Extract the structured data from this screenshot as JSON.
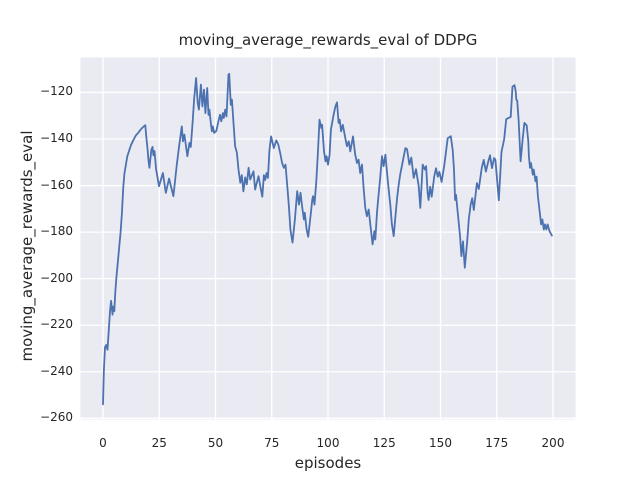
{
  "figure": {
    "background_color": "#ffffff",
    "text_color": "#262626"
  },
  "chart_data": {
    "type": "line",
    "title": "moving_average_rewards_eval of DDPG",
    "xlabel": "episodes",
    "ylabel": "moving_average_rewards_eval",
    "xlim": [
      -10,
      210
    ],
    "ylim": [
      -260.5,
      -105
    ],
    "grid": true,
    "legend_position": "none",
    "xticks": [
      0,
      25,
      50,
      75,
      100,
      125,
      150,
      175,
      200
    ],
    "xtick_labels": [
      "0",
      "25",
      "50",
      "75",
      "100",
      "125",
      "150",
      "175",
      "200"
    ],
    "yticks": [
      -120,
      -140,
      -160,
      -180,
      -200,
      -220,
      -240,
      -260
    ],
    "ytick_labels": [
      "−120",
      "−140",
      "−160",
      "−180",
      "−200",
      "−220",
      "−240",
      "−260"
    ],
    "style": {
      "axes_background": "#eaeaf2",
      "grid_color": "#ffffff",
      "line_color": "#4c72b0",
      "text_color": "#262626"
    },
    "series": [
      {
        "name": "moving_average_rewards_eval",
        "points": [
          [
            0,
            -254
          ],
          [
            0.4,
            -239
          ],
          [
            0.9,
            -229.5
          ],
          [
            1.4,
            -228.5
          ],
          [
            2,
            -230.5
          ],
          [
            2.6,
            -222
          ],
          [
            3.1,
            -214
          ],
          [
            3.6,
            -209.5
          ],
          [
            4.2,
            -215.5
          ],
          [
            4.6,
            -212
          ],
          [
            5,
            -214
          ],
          [
            5.5,
            -205
          ],
          [
            6,
            -199
          ],
          [
            6.6,
            -193
          ],
          [
            7.2,
            -186.5
          ],
          [
            7.8,
            -180
          ],
          [
            8.4,
            -172
          ],
          [
            9,
            -160.5
          ],
          [
            9.5,
            -155
          ],
          [
            10.2,
            -151
          ],
          [
            10.8,
            -147.5
          ],
          [
            11.5,
            -145.3
          ],
          [
            12.5,
            -142.5
          ],
          [
            13.6,
            -140.3
          ],
          [
            14.6,
            -138.5
          ],
          [
            15.7,
            -137.3
          ],
          [
            16.7,
            -136
          ],
          [
            17.7,
            -135
          ],
          [
            18.8,
            -134.1
          ],
          [
            19.3,
            -139.6
          ],
          [
            19.8,
            -144.6
          ],
          [
            20.2,
            -148.9
          ],
          [
            20.6,
            -152.4
          ],
          [
            21.5,
            -144.6
          ],
          [
            22,
            -143.4
          ],
          [
            22.4,
            -147
          ],
          [
            22.9,
            -145.2
          ],
          [
            23.6,
            -153
          ],
          [
            24.9,
            -160.3
          ],
          [
            26.6,
            -154.6
          ],
          [
            27.9,
            -163.1
          ],
          [
            29.4,
            -157
          ],
          [
            31.3,
            -164.6
          ],
          [
            32.8,
            -151
          ],
          [
            33.9,
            -142.5
          ],
          [
            35,
            -134.6
          ],
          [
            35.5,
            -141
          ],
          [
            36.2,
            -138.1
          ],
          [
            36.9,
            -143.1
          ],
          [
            37.5,
            -147.4
          ],
          [
            38.4,
            -141.7
          ],
          [
            39,
            -143.4
          ],
          [
            39.9,
            -131.7
          ],
          [
            40.5,
            -123.1
          ],
          [
            41.4,
            -113.8
          ],
          [
            42.1,
            -124.6
          ],
          [
            42.6,
            -127.4
          ],
          [
            43.5,
            -116.7
          ],
          [
            44.2,
            -126
          ],
          [
            44.9,
            -118.8
          ],
          [
            45.5,
            -128.9
          ],
          [
            46.3,
            -118.1
          ],
          [
            46.9,
            -129.6
          ],
          [
            47.3,
            -127.4
          ],
          [
            47.9,
            -133.1
          ],
          [
            48.4,
            -136.7
          ],
          [
            48.8,
            -134.6
          ],
          [
            49.4,
            -137.4
          ],
          [
            50.4,
            -136.5
          ],
          [
            51.3,
            -132.4
          ],
          [
            52,
            -129.6
          ],
          [
            52.6,
            -132.4
          ],
          [
            53.3,
            -128.9
          ],
          [
            53.7,
            -131
          ],
          [
            54.3,
            -127.4
          ],
          [
            54.9,
            -130.3
          ],
          [
            55.8,
            -112.4
          ],
          [
            56.1,
            -112
          ],
          [
            56.8,
            -125.3
          ],
          [
            57.3,
            -123.1
          ],
          [
            58,
            -133.1
          ],
          [
            58.7,
            -143.1
          ],
          [
            59.5,
            -146
          ],
          [
            60.2,
            -153.1
          ],
          [
            61,
            -158.8
          ],
          [
            61.7,
            -155.5
          ],
          [
            62.4,
            -162.5
          ],
          [
            63.2,
            -156.5
          ],
          [
            63.9,
            -159.5
          ],
          [
            64.7,
            -152.4
          ],
          [
            65.4,
            -157.4
          ],
          [
            66.9,
            -153.9
          ],
          [
            67.6,
            -161.7
          ],
          [
            69.1,
            -156
          ],
          [
            69.9,
            -160.3
          ],
          [
            70.8,
            -164.8
          ],
          [
            71.5,
            -155.5
          ],
          [
            72.1,
            -157.6
          ],
          [
            72.7,
            -154.6
          ],
          [
            73.3,
            -156.7
          ],
          [
            74,
            -144.6
          ],
          [
            74.7,
            -138.9
          ],
          [
            75.9,
            -143.9
          ],
          [
            77,
            -140.6
          ],
          [
            77.9,
            -142.4
          ],
          [
            78.9,
            -146.7
          ],
          [
            79.6,
            -150.3
          ],
          [
            80.4,
            -152.4
          ],
          [
            81.1,
            -151
          ],
          [
            81.9,
            -160.3
          ],
          [
            82.6,
            -168.9
          ],
          [
            83.3,
            -178.9
          ],
          [
            84.2,
            -184.5
          ],
          [
            85.3,
            -174.6
          ],
          [
            86.3,
            -162.4
          ],
          [
            87.1,
            -168.2
          ],
          [
            87.8,
            -163.1
          ],
          [
            88.5,
            -168.9
          ],
          [
            89.3,
            -174.6
          ],
          [
            89.7,
            -171.7
          ],
          [
            90.5,
            -178.9
          ],
          [
            91.2,
            -182
          ],
          [
            92.2,
            -173.2
          ],
          [
            93,
            -166
          ],
          [
            93.4,
            -164.6
          ],
          [
            94,
            -168.2
          ],
          [
            94.8,
            -158.2
          ],
          [
            95.5,
            -146
          ],
          [
            96.2,
            -131.7
          ],
          [
            97,
            -135.3
          ],
          [
            97.4,
            -133.9
          ],
          [
            98.2,
            -145.3
          ],
          [
            98.9,
            -149.6
          ],
          [
            99.4,
            -147.4
          ],
          [
            100,
            -151
          ],
          [
            100.7,
            -146.7
          ],
          [
            101.3,
            -136
          ],
          [
            102.5,
            -129.6
          ],
          [
            103.3,
            -126
          ],
          [
            104,
            -124.3
          ],
          [
            104.7,
            -133.1
          ],
          [
            105.2,
            -131.7
          ],
          [
            105.8,
            -136.7
          ],
          [
            106.6,
            -133.9
          ],
          [
            107.7,
            -139.6
          ],
          [
            108.4,
            -143.1
          ],
          [
            109.2,
            -141
          ],
          [
            109.9,
            -145.3
          ],
          [
            111.1,
            -138.9
          ],
          [
            112.1,
            -146.7
          ],
          [
            112.9,
            -150.3
          ],
          [
            113.6,
            -148.9
          ],
          [
            114.3,
            -154.6
          ],
          [
            115.1,
            -151
          ],
          [
            115.8,
            -161
          ],
          [
            116.6,
            -169.6
          ],
          [
            117.3,
            -173.2
          ],
          [
            118.1,
            -170.3
          ],
          [
            118.8,
            -176.7
          ],
          [
            119.8,
            -185.3
          ],
          [
            120.6,
            -179.6
          ],
          [
            121,
            -183.2
          ],
          [
            121.8,
            -171
          ],
          [
            122.5,
            -163.9
          ],
          [
            123.2,
            -156.7
          ],
          [
            124,
            -147.4
          ],
          [
            124.7,
            -151.7
          ],
          [
            125.5,
            -146.7
          ],
          [
            126.2,
            -153.9
          ],
          [
            126.9,
            -161
          ],
          [
            127.7,
            -168.2
          ],
          [
            128.4,
            -176.7
          ],
          [
            129.2,
            -181.7
          ],
          [
            129.9,
            -173.9
          ],
          [
            130.7,
            -165.3
          ],
          [
            131.4,
            -159.6
          ],
          [
            132.1,
            -155.3
          ],
          [
            134.4,
            -143.9
          ],
          [
            135.1,
            -144.3
          ],
          [
            136.2,
            -151
          ],
          [
            137,
            -148
          ],
          [
            138.1,
            -156.7
          ],
          [
            139.1,
            -153
          ],
          [
            140.3,
            -160.3
          ],
          [
            141,
            -169.6
          ],
          [
            142.1,
            -151
          ],
          [
            143,
            -153.1
          ],
          [
            143.6,
            -151.7
          ],
          [
            144.3,
            -163.5
          ],
          [
            144.7,
            -166.2
          ],
          [
            145.4,
            -160.5
          ],
          [
            146.1,
            -164.8
          ],
          [
            147.2,
            -156.2
          ],
          [
            148,
            -152.6
          ],
          [
            148.8,
            -156.2
          ],
          [
            149.5,
            -154.1
          ],
          [
            150.5,
            -158.5
          ],
          [
            151.7,
            -151.2
          ],
          [
            153.2,
            -139.7
          ],
          [
            154.6,
            -138.8
          ],
          [
            155.4,
            -144.7
          ],
          [
            156,
            -153.3
          ],
          [
            156.5,
            -166.2
          ],
          [
            156.9,
            -164
          ],
          [
            157.7,
            -171.9
          ],
          [
            158.7,
            -182
          ],
          [
            159.3,
            -190.3
          ],
          [
            160,
            -184
          ],
          [
            160.8,
            -195.3
          ],
          [
            161.8,
            -184.5
          ],
          [
            162.6,
            -174.5
          ],
          [
            163.4,
            -168
          ],
          [
            164.1,
            -165.5
          ],
          [
            164.8,
            -170.5
          ],
          [
            166.2,
            -159
          ],
          [
            167,
            -161.5
          ],
          [
            168.3,
            -152.5
          ],
          [
            169.2,
            -149
          ],
          [
            170.2,
            -154
          ],
          [
            171,
            -150.5
          ],
          [
            172,
            -147
          ],
          [
            172.9,
            -152.5
          ],
          [
            173.8,
            -148.2
          ],
          [
            174.4,
            -148.9
          ],
          [
            175.9,
            -166.3
          ],
          [
            177.1,
            -145.5
          ],
          [
            178.3,
            -140
          ],
          [
            179.2,
            -131.5
          ],
          [
            180.6,
            -130.8
          ],
          [
            181.2,
            -130.5
          ],
          [
            182,
            -117.5
          ],
          [
            182.9,
            -116.9
          ],
          [
            183.4,
            -119.5
          ],
          [
            183.7,
            -123.1
          ],
          [
            184.1,
            -123.5
          ],
          [
            184.7,
            -131.7
          ],
          [
            185.6,
            -149.6
          ],
          [
            186.6,
            -139.5
          ],
          [
            187.3,
            -133.1
          ],
          [
            188.3,
            -134.2
          ],
          [
            189,
            -141
          ],
          [
            189.3,
            -147.4
          ],
          [
            189.8,
            -152.4
          ],
          [
            190.2,
            -150.3
          ],
          [
            191,
            -155.3
          ],
          [
            191.4,
            -153.1
          ],
          [
            192.2,
            -158.2
          ],
          [
            192.7,
            -156.2
          ],
          [
            193.3,
            -164.6
          ],
          [
            194,
            -170.5
          ],
          [
            194.7,
            -176.7
          ],
          [
            195.3,
            -174.6
          ],
          [
            195.9,
            -178.9
          ],
          [
            196.4,
            -176.7
          ],
          [
            197,
            -178.9
          ],
          [
            197.6,
            -176.7
          ],
          [
            198.4,
            -179.5
          ],
          [
            199.5,
            -181.5
          ]
        ]
      }
    ]
  }
}
